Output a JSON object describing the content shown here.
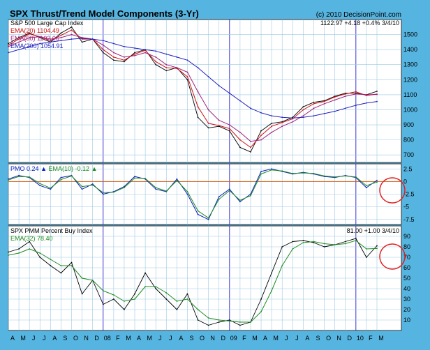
{
  "header": {
    "title": "SPX Thrust/Trend Model Components (3-Yr)",
    "copyright": "(c) 2010 DecisionPoint.com"
  },
  "colors": {
    "background": "#55b4e0",
    "panel": "#ffffff",
    "grid": "#9ec9e2",
    "price": "#000000",
    "ema20": "#d01010",
    "ema50": "#a0207a",
    "ema200": "#2020c0",
    "pmo": "#0a20c0",
    "pmo_signal": "#208a20",
    "zero_line": "#d05a10",
    "highlight_circle": "#e02020",
    "year_marker": "#2222cc"
  },
  "x_axis": {
    "months": [
      "A",
      "M",
      "J",
      "J",
      "A",
      "S",
      "O",
      "N",
      "D",
      "08",
      "F",
      "M",
      "A",
      "M",
      "J",
      "J",
      "A",
      "S",
      "O",
      "N",
      "D",
      "09",
      "F",
      "M",
      "A",
      "M",
      "J",
      "J",
      "A",
      "S",
      "O",
      "N",
      "D",
      "10",
      "F",
      "M"
    ]
  },
  "panels": {
    "price": {
      "name": "S&P 500 Large Cap Index",
      "stats": [
        "1122.97",
        "+4.18",
        "+0.4%",
        "3/4/10"
      ],
      "legend": [
        {
          "label": "EMA(20)",
          "value": "1104.49"
        },
        {
          "label": "EMA(50)",
          "value": "1102.06"
        },
        {
          "label": "EMA(200)",
          "value": "1054.91"
        }
      ],
      "yticks": [
        "1500",
        "1400",
        "1300",
        "1200",
        "1100",
        "1000",
        "900",
        "800",
        "700"
      ]
    },
    "pmo": {
      "label": "PMO",
      "value": "0.24",
      "signal_label": "EMA(10)",
      "signal_value": "-0.12",
      "yticks": [
        "2.5",
        "0",
        "-2.5",
        "-5",
        "-7.5"
      ]
    },
    "pmm": {
      "name": "SPX PMM Percent Buy Index",
      "stats": [
        "81.00",
        "+1.00",
        "3/4/10"
      ],
      "legend": [
        {
          "label": "EMA(32)",
          "value": "78.40"
        }
      ],
      "yticks": [
        "90",
        "80",
        "70",
        "60",
        "50",
        "40",
        "30",
        "20",
        "10"
      ]
    }
  },
  "chart_data": [
    {
      "type": "line",
      "title": "S&P 500 Large Cap Index",
      "ylim": [
        650,
        1600
      ],
      "x": [
        "2007-04",
        "2007-05",
        "2007-06",
        "2007-07",
        "2007-08",
        "2007-09",
        "2007-10",
        "2007-11",
        "2007-12",
        "2008-01",
        "2008-02",
        "2008-03",
        "2008-04",
        "2008-05",
        "2008-06",
        "2008-07",
        "2008-08",
        "2008-09",
        "2008-10",
        "2008-11",
        "2008-12",
        "2009-01",
        "2009-02",
        "2009-03",
        "2009-04",
        "2009-05",
        "2009-06",
        "2009-07",
        "2009-08",
        "2009-09",
        "2009-10",
        "2009-11",
        "2009-12",
        "2010-01",
        "2010-02",
        "2010-03"
      ],
      "series": [
        {
          "name": "S&P 500 Large Cap Index",
          "values": [
            1440,
            1480,
            1510,
            1480,
            1450,
            1510,
            1550,
            1450,
            1470,
            1380,
            1330,
            1320,
            1380,
            1400,
            1300,
            1260,
            1280,
            1200,
            950,
            880,
            890,
            860,
            750,
            720,
            860,
            910,
            920,
            950,
            1020,
            1050,
            1060,
            1090,
            1110,
            1110,
            1100,
            1123
          ]
        },
        {
          "name": "EMA(20)",
          "values": [
            1430,
            1470,
            1505,
            1485,
            1460,
            1495,
            1530,
            1470,
            1470,
            1400,
            1350,
            1330,
            1370,
            1395,
            1320,
            1280,
            1275,
            1220,
            1020,
            910,
            895,
            875,
            800,
            750,
            830,
            890,
            915,
            940,
            1000,
            1040,
            1055,
            1085,
            1105,
            1120,
            1095,
            1104
          ]
        },
        {
          "name": "EMA(50)",
          "values": [
            1420,
            1450,
            1480,
            1485,
            1470,
            1480,
            1500,
            1480,
            1470,
            1430,
            1380,
            1350,
            1360,
            1380,
            1350,
            1300,
            1280,
            1250,
            1120,
            1000,
            930,
            900,
            850,
            790,
            800,
            850,
            890,
            920,
            960,
            1010,
            1040,
            1065,
            1090,
            1105,
            1100,
            1102
          ]
        },
        {
          "name": "EMA(200)",
          "values": [
            1380,
            1400,
            1420,
            1440,
            1450,
            1460,
            1470,
            1475,
            1470,
            1460,
            1440,
            1420,
            1410,
            1400,
            1390,
            1370,
            1350,
            1330,
            1280,
            1220,
            1160,
            1110,
            1060,
            1010,
            980,
            960,
            950,
            945,
            950,
            960,
            975,
            990,
            1010,
            1030,
            1045,
            1055
          ]
        }
      ]
    },
    {
      "type": "line",
      "title": "PMO",
      "ylim": [
        -8.5,
        3.5
      ],
      "x": [
        "2007-04",
        "2007-05",
        "2007-06",
        "2007-07",
        "2007-08",
        "2007-09",
        "2007-10",
        "2007-11",
        "2007-12",
        "2008-01",
        "2008-02",
        "2008-03",
        "2008-04",
        "2008-05",
        "2008-06",
        "2008-07",
        "2008-08",
        "2008-09",
        "2008-10",
        "2008-11",
        "2008-12",
        "2009-01",
        "2009-02",
        "2009-03",
        "2009-04",
        "2009-05",
        "2009-06",
        "2009-07",
        "2009-08",
        "2009-09",
        "2009-10",
        "2009-11",
        "2009-12",
        "2010-01",
        "2010-02",
        "2010-03"
      ],
      "series": [
        {
          "name": "PMO",
          "values": [
            0.5,
            1.2,
            0.8,
            -0.8,
            -1.5,
            0.8,
            1.2,
            -1.5,
            -0.5,
            -2.5,
            -2,
            -1,
            1,
            0.5,
            -1.5,
            -2,
            0.5,
            -2.5,
            -6.5,
            -7.5,
            -3,
            -1.5,
            -4,
            -2.5,
            2,
            2.5,
            2,
            1.5,
            1.8,
            1.5,
            1,
            0.8,
            1.2,
            0.8,
            -1.2,
            0.24
          ]
        },
        {
          "name": "EMA(10)",
          "values": [
            0.3,
            1,
            0.9,
            -0.4,
            -1.3,
            0.4,
            1.1,
            -1,
            -0.7,
            -2.2,
            -2.1,
            -1.2,
            0.7,
            0.6,
            -1.2,
            -1.9,
            0.2,
            -2,
            -5.8,
            -7.2,
            -3.5,
            -1.8,
            -3.7,
            -2.8,
            1.5,
            2.3,
            2.1,
            1.6,
            1.7,
            1.6,
            1.1,
            0.9,
            1.1,
            0.9,
            -0.8,
            -0.12
          ]
        }
      ]
    },
    {
      "type": "line",
      "title": "SPX PMM Percent Buy Index",
      "ylim": [
        0,
        100
      ],
      "x": [
        "2007-04",
        "2007-05",
        "2007-06",
        "2007-07",
        "2007-08",
        "2007-09",
        "2007-10",
        "2007-11",
        "2007-12",
        "2008-01",
        "2008-02",
        "2008-03",
        "2008-04",
        "2008-05",
        "2008-06",
        "2008-07",
        "2008-08",
        "2008-09",
        "2008-10",
        "2008-11",
        "2008-12",
        "2009-01",
        "2009-02",
        "2009-03",
        "2009-04",
        "2009-05",
        "2009-06",
        "2009-07",
        "2009-08",
        "2009-09",
        "2009-10",
        "2009-11",
        "2009-12",
        "2010-01",
        "2010-02",
        "2010-03"
      ],
      "series": [
        {
          "name": "SPX PMM Percent Buy Index",
          "values": [
            75,
            78,
            85,
            70,
            62,
            55,
            65,
            35,
            48,
            25,
            30,
            20,
            35,
            55,
            40,
            30,
            20,
            35,
            10,
            5,
            8,
            10,
            5,
            8,
            30,
            55,
            80,
            85,
            86,
            84,
            80,
            82,
            85,
            88,
            70,
            81
          ]
        },
        {
          "name": "EMA(32)",
          "values": [
            72,
            74,
            78,
            74,
            68,
            62,
            62,
            50,
            48,
            38,
            34,
            28,
            30,
            42,
            42,
            36,
            28,
            30,
            20,
            12,
            10,
            9,
            8,
            8,
            18,
            38,
            62,
            78,
            84,
            85,
            83,
            82,
            83,
            86,
            78,
            78.4
          ]
        }
      ]
    }
  ]
}
